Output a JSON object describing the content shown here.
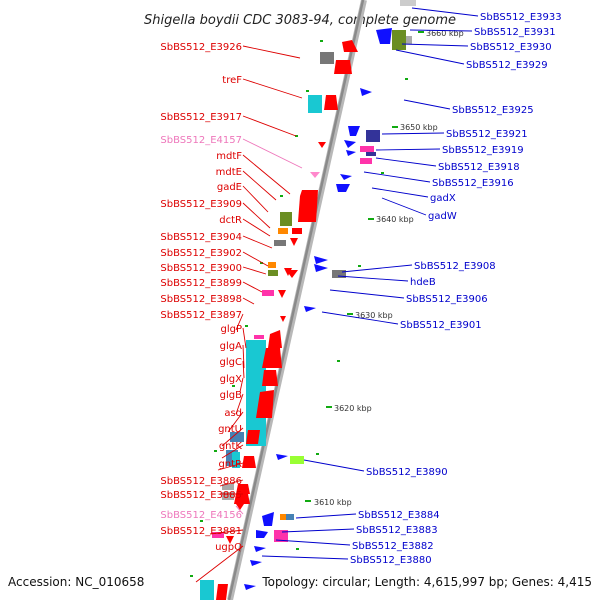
{
  "title": "Shigella boydii CDC 3083-94, complete genome",
  "accession": "Accession: NC_010658",
  "topology": "Topology: circular; Length: 4,615,997 bp; Genes: 4,415",
  "scale_labels": [
    "3660 kbp",
    "3650 kbp",
    "3640 kbp",
    "3630 kbp",
    "3620 kbp",
    "3610 kbp"
  ],
  "colors": {
    "red_label": "#dd0000",
    "pink_label": "#ee77bb",
    "blue_label": "#0000cc",
    "backbone": "#999999",
    "forward_gene": "#ff0000",
    "reverse_gene": "#1010ff",
    "rna_gene": "#ff33aa",
    "cyan_gene": "#19c8d2",
    "olive_gene": "#6b8e23",
    "gray_gene": "#777777",
    "tick": "#11aa11"
  },
  "left_labels": [
    {
      "text": "SbBS512_E3926",
      "color": "red"
    },
    {
      "text": "treF",
      "color": "red"
    },
    {
      "text": "SbBS512_E3917",
      "color": "red"
    },
    {
      "text": "SbBS512_E4157",
      "color": "pink"
    },
    {
      "text": "mdtF",
      "color": "red"
    },
    {
      "text": "mdtE",
      "color": "red"
    },
    {
      "text": "gadE",
      "color": "red"
    },
    {
      "text": "SbBS512_E3909",
      "color": "red"
    },
    {
      "text": "dctR",
      "color": "red"
    },
    {
      "text": "SbBS512_E3904",
      "color": "red"
    },
    {
      "text": "SbBS512_E3902",
      "color": "red"
    },
    {
      "text": "SbBS512_E3900",
      "color": "red"
    },
    {
      "text": "SbBS512_E3899",
      "color": "red"
    },
    {
      "text": "SbBS512_E3898",
      "color": "red"
    },
    {
      "text": "SbBS512_E3897",
      "color": "red"
    },
    {
      "text": "glgP",
      "color": "red"
    },
    {
      "text": "glgA",
      "color": "red"
    },
    {
      "text": "glgC",
      "color": "red"
    },
    {
      "text": "glgX",
      "color": "red"
    },
    {
      "text": "glgB",
      "color": "red"
    },
    {
      "text": "asd",
      "color": "red"
    },
    {
      "text": "gntU",
      "color": "red"
    },
    {
      "text": "gntK",
      "color": "red"
    },
    {
      "text": "gntR",
      "color": "red"
    },
    {
      "text": "SbBS512_E3886",
      "color": "red"
    },
    {
      "text": "SbBS512_E3885",
      "color": "red"
    },
    {
      "text": "SbBS512_E4156",
      "color": "pink"
    },
    {
      "text": "SbBS512_E3881",
      "color": "red"
    },
    {
      "text": "ugpQ",
      "color": "red"
    }
  ],
  "right_labels": [
    {
      "text": "SbBS512_E3933"
    },
    {
      "text": "SbBS512_E3931"
    },
    {
      "text": "SbBS512_E3930"
    },
    {
      "text": "SbBS512_E3929"
    },
    {
      "text": "SbBS512_E3925"
    },
    {
      "text": "SbBS512_E3921"
    },
    {
      "text": "SbBS512_E3919"
    },
    {
      "text": "SbBS512_E3918"
    },
    {
      "text": "SbBS512_E3916"
    },
    {
      "text": "gadX"
    },
    {
      "text": "gadW"
    },
    {
      "text": "SbBS512_E3908"
    },
    {
      "text": "hdeB"
    },
    {
      "text": "SbBS512_E3906"
    },
    {
      "text": "SbBS512_E3901"
    },
    {
      "text": "SbBS512_E3890"
    },
    {
      "text": "SbBS512_E3884"
    },
    {
      "text": "SbBS512_E3883"
    },
    {
      "text": "SbBS512_E3882"
    },
    {
      "text": "SbBS512_E3880"
    }
  ]
}
